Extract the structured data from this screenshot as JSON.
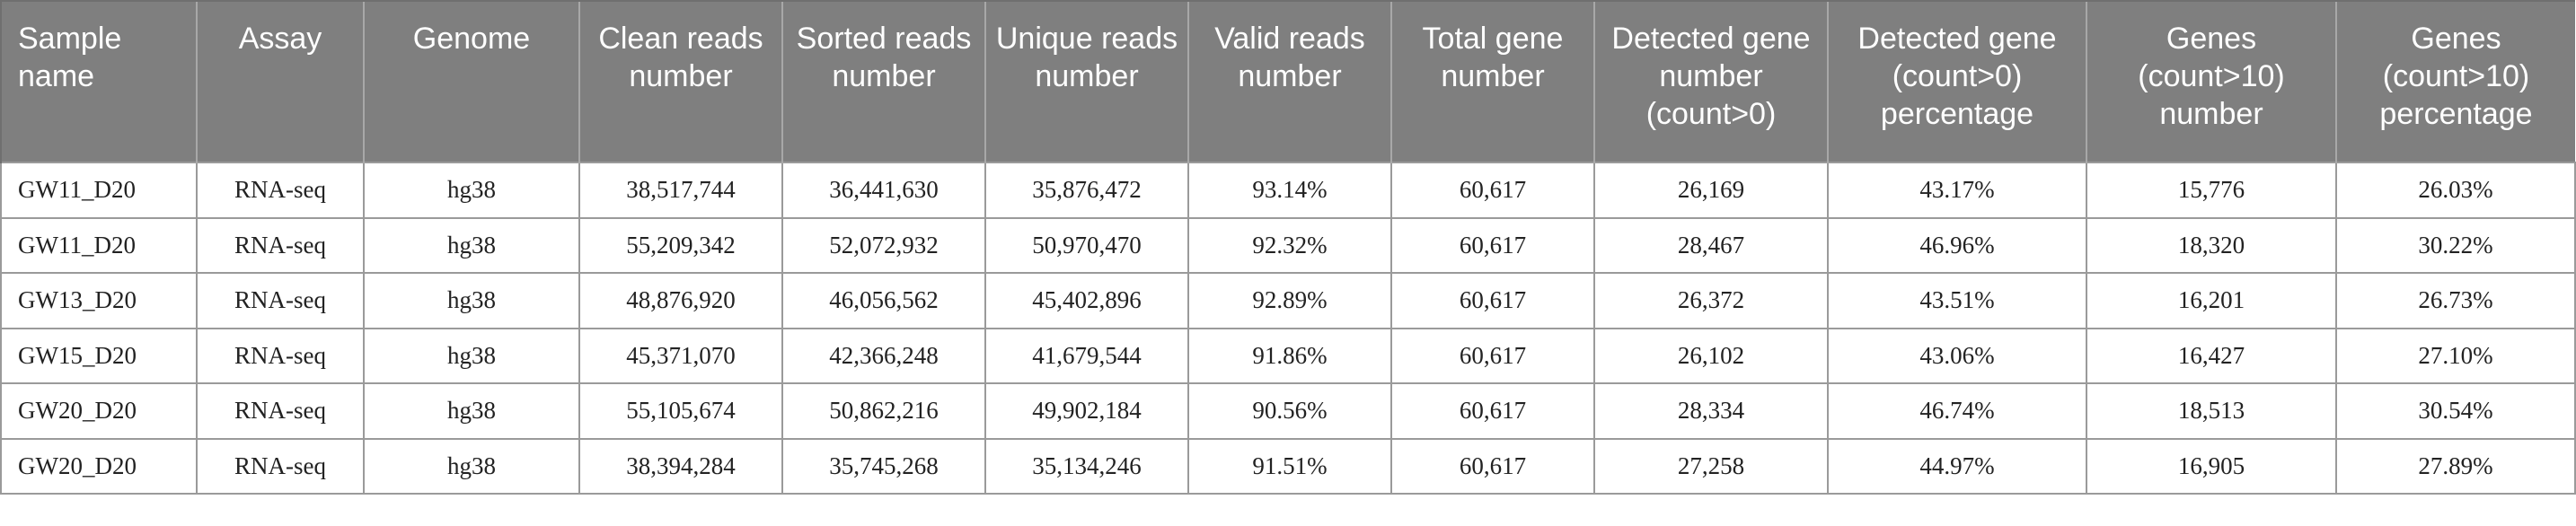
{
  "table": {
    "headers": [
      "Sample name",
      "Assay",
      "Genome",
      "Clean reads number",
      "Sorted reads number",
      "Unique reads number",
      "Valid reads number",
      "Total gene number",
      "Detected gene number (count>0)",
      "Detected gene (count>0) percentage",
      "Genes (count>10) number",
      "Genes (count>10) percentage"
    ],
    "rows": [
      [
        "GW11_D20",
        "RNA-seq",
        "hg38",
        "38,517,744",
        "36,441,630",
        "35,876,472",
        "93.14%",
        "60,617",
        "26,169",
        "43.17%",
        "15,776",
        "26.03%"
      ],
      [
        "GW11_D20",
        "RNA-seq",
        "hg38",
        "55,209,342",
        "52,072,932",
        "50,970,470",
        "92.32%",
        "60,617",
        "28,467",
        "46.96%",
        "18,320",
        "30.22%"
      ],
      [
        "GW13_D20",
        "RNA-seq",
        "hg38",
        "48,876,920",
        "46,056,562",
        "45,402,896",
        "92.89%",
        "60,617",
        "26,372",
        "43.51%",
        "16,201",
        "26.73%"
      ],
      [
        "GW15_D20",
        "RNA-seq",
        "hg38",
        "45,371,070",
        "42,366,248",
        "41,679,544",
        "91.86%",
        "60,617",
        "26,102",
        "43.06%",
        "16,427",
        "27.10%"
      ],
      [
        "GW20_D20",
        "RNA-seq",
        "hg38",
        "55,105,674",
        "50,862,216",
        "49,902,184",
        "90.56%",
        "60,617",
        "28,334",
        "46.74%",
        "18,513",
        "30.54%"
      ],
      [
        "GW20_D20",
        "RNA-seq",
        "hg38",
        "38,394,284",
        "35,745,268",
        "35,134,246",
        "91.51%",
        "60,617",
        "27,258",
        "44.97%",
        "16,905",
        "27.89%"
      ]
    ]
  }
}
